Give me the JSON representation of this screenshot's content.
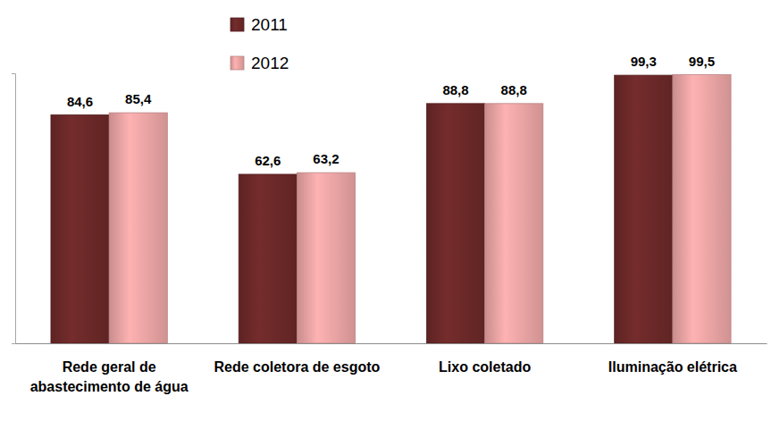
{
  "chart_data": {
    "type": "bar",
    "categories": [
      "Rede geral de abastecimento de água",
      "Rede coletora de esgoto",
      "Lixo coletado",
      "Iluminação elétrica"
    ],
    "series": [
      {
        "name": "2011",
        "color": "#6b2828",
        "values": [
          84.6,
          62.6,
          88.8,
          99.3
        ],
        "value_labels": [
          "84,6",
          "62,6",
          "88,8",
          "99,3"
        ]
      },
      {
        "name": "2012",
        "color": "#e8a3a3",
        "values": [
          85.4,
          63.2,
          88.8,
          99.5
        ],
        "value_labels": [
          "85,4",
          "63,2",
          "88,8",
          "99,5"
        ]
      }
    ],
    "ylim": [
      0,
      100
    ],
    "yticks": [
      0,
      100
    ],
    "tick_labels": "x",
    "grid": false,
    "legend": "top",
    "data_labels": true
  }
}
